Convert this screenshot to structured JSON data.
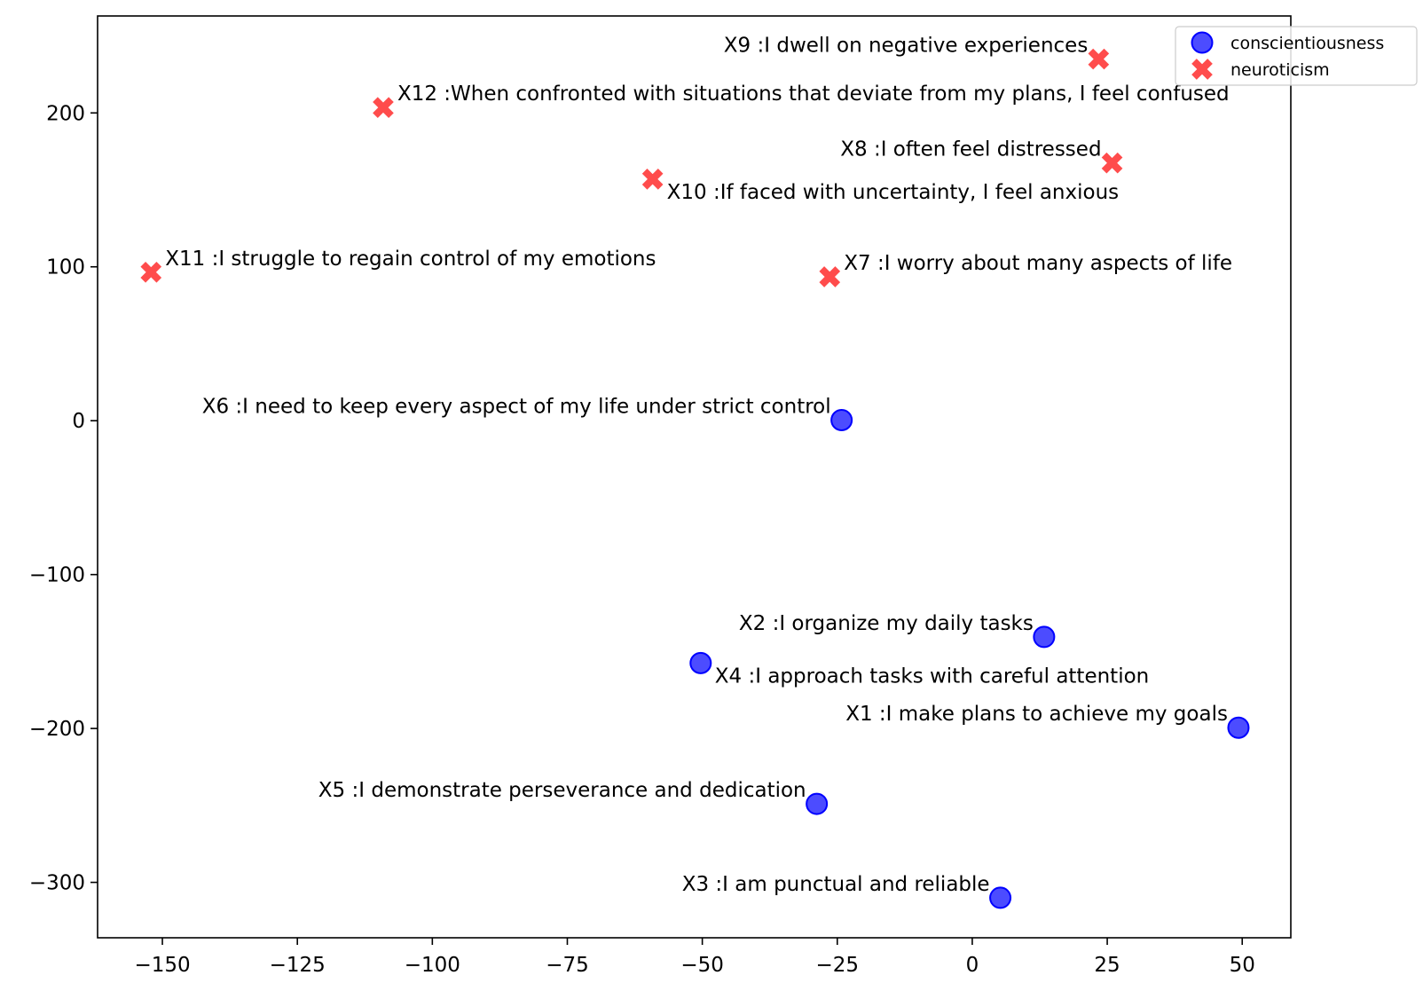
{
  "chart_data": {
    "type": "scatter",
    "title": "",
    "xlabel": "",
    "ylabel": "",
    "xlim": [
      -162,
      59
    ],
    "ylim": [
      -336,
      263
    ],
    "xticks": [
      -150,
      -125,
      -100,
      -75,
      -50,
      -25,
      0,
      25,
      50
    ],
    "yticks": [
      -300,
      -200,
      -100,
      0,
      100,
      200
    ],
    "grid": false,
    "legend_position": "top-right",
    "series": [
      {
        "name": "conscientiousness",
        "marker": "circle",
        "color": "#0000ff",
        "points": [
          {
            "label": "X1 :I make plans to achieve my goals",
            "x": 49.3,
            "y": -199.5,
            "label_side": "left",
            "label_pos": "above"
          },
          {
            "label": "X2 :I organize my daily tasks",
            "x": 13.3,
            "y": -140.5,
            "label_side": "left",
            "label_pos": "above"
          },
          {
            "label": "X3 :I am punctual and reliable",
            "x": 5.2,
            "y": -310,
            "label_side": "left",
            "label_pos": "above"
          },
          {
            "label": "X4 :I approach tasks with careful attention",
            "x": -50.3,
            "y": -157.5,
            "label_side": "right",
            "label_pos": "below"
          },
          {
            "label": "X5 :I demonstrate perseverance and dedication",
            "x": -28.8,
            "y": -249,
            "label_side": "left",
            "label_pos": "above"
          },
          {
            "label": "X6 :I need to keep every aspect of my life under strict control",
            "x": -24.2,
            "y": 0.4,
            "label_side": "left",
            "label_pos": "above"
          }
        ]
      },
      {
        "name": "neuroticism",
        "marker": "x",
        "color": "#ff0000",
        "points": [
          {
            "label": "X7 :I worry about many aspects of life",
            "x": -26.4,
            "y": 93.5,
            "label_side": "right",
            "label_pos": "above"
          },
          {
            "label": "X8 :I often feel distressed",
            "x": 25.9,
            "y": 167.5,
            "label_side": "left",
            "label_pos": "above"
          },
          {
            "label": "X9 :I dwell on negative experiences",
            "x": 23.4,
            "y": 235,
            "label_side": "left",
            "label_pos": "above"
          },
          {
            "label": "X10 :If faced with uncertainty, I feel anxious",
            "x": -59.2,
            "y": 157,
            "label_side": "right",
            "label_pos": "below"
          },
          {
            "label": "X11 :I struggle to regain control of my emotions",
            "x": -152.1,
            "y": 96.5,
            "label_side": "right",
            "label_pos": "above"
          },
          {
            "label": "X12 :When confronted with situations that deviate from my plans, I feel confused",
            "x": -109.1,
            "y": 203.5,
            "label_side": "right",
            "label_pos": "above"
          }
        ]
      }
    ]
  }
}
